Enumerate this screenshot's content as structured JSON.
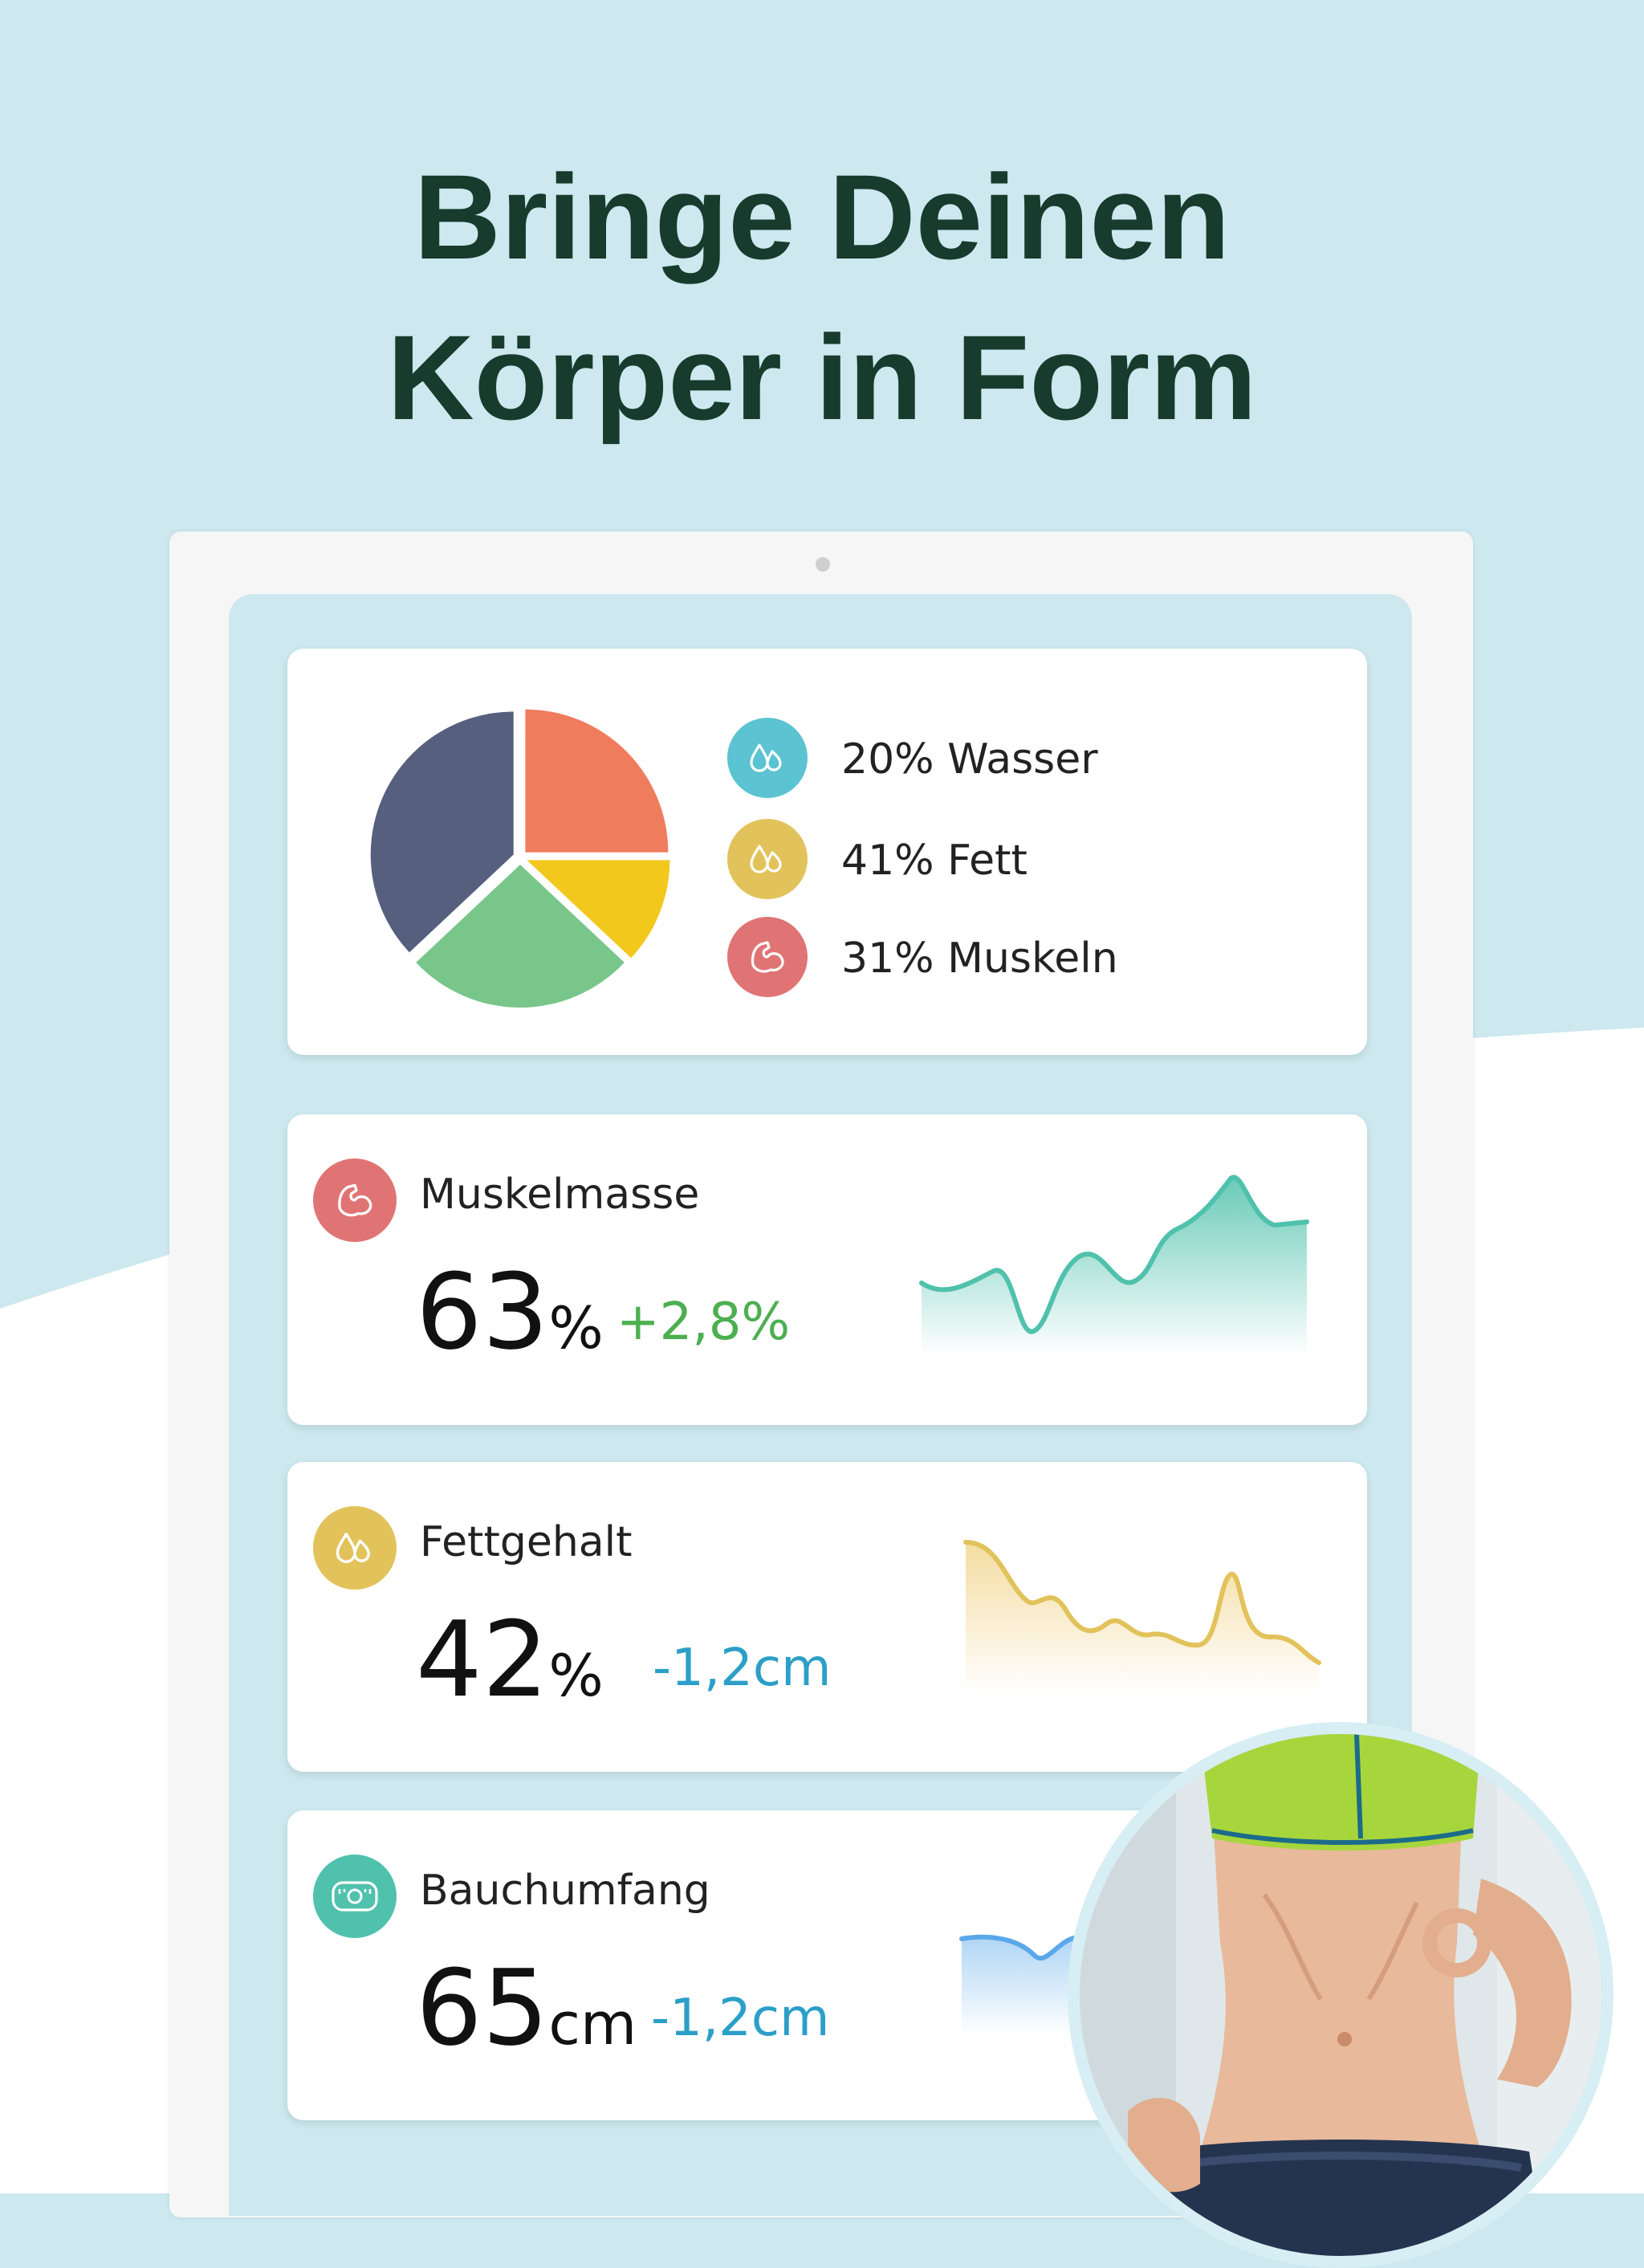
{
  "headline": {
    "line1": "Bringe Deinen",
    "line2": "Körper in Form"
  },
  "composition": {
    "legend": [
      {
        "label": "20% Wasser",
        "color": "#5bc3d2",
        "icon": "water-drop-icon"
      },
      {
        "label": "41% Fett",
        "color": "#e2c25a",
        "icon": "fat-drop-icon"
      },
      {
        "label": "31% Muskeln",
        "color": "#e07474",
        "icon": "muscle-icon"
      }
    ]
  },
  "chart_data": {
    "type": "pie",
    "slices": [
      {
        "color": "#f07c5e",
        "percent": 25
      },
      {
        "color": "#f2c81d",
        "percent": 12
      },
      {
        "color": "#78c68a",
        "percent": 26
      },
      {
        "color": "#565f7e",
        "percent": 37
      }
    ]
  },
  "metrics": [
    {
      "title": "Muskelmasse",
      "value": "63",
      "unit": "%",
      "change": "+2,8%",
      "change_color": "#4caf50",
      "icon": "muscle-icon",
      "icon_color": "#e07474",
      "line_color": "#4fc1ac"
    },
    {
      "title": "Fettgehalt",
      "value": "42",
      "unit": "%",
      "change": "-1,2cm",
      "change_color": "#2b9fc8",
      "icon": "fat-drop-icon",
      "icon_color": "#e2c25a",
      "line_color": "#e2c25a"
    },
    {
      "title": "Bauchumfang",
      "value": "65",
      "unit": "cm",
      "change": "-1,2cm",
      "change_color": "#2b9fc8",
      "icon": "measuring-tape-icon",
      "icon_color": "#4fc1ac",
      "line_color": "#5aa8ea"
    }
  ],
  "photo": {
    "icon": "slim-waist-photo"
  }
}
